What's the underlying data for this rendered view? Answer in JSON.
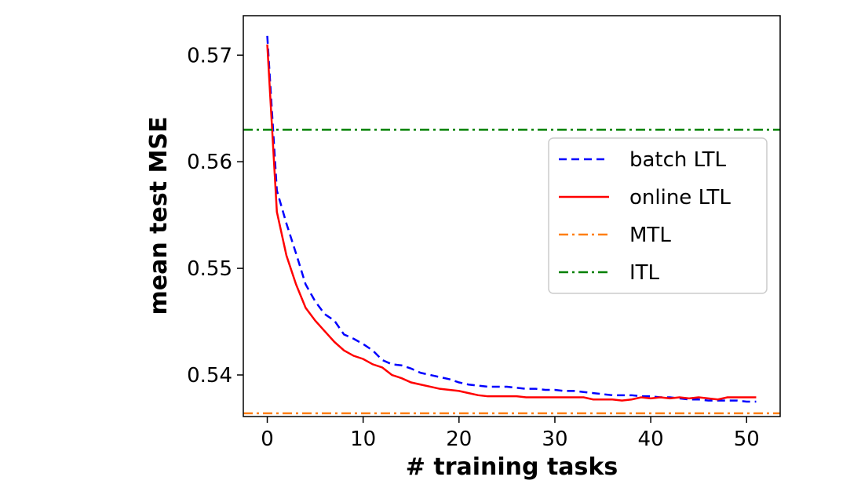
{
  "chart_data": {
    "type": "line",
    "xlabel": "# training tasks",
    "ylabel": "mean test MSE",
    "xlim": [
      -2.5,
      53.5
    ],
    "ylim": [
      0.5361,
      0.5737
    ],
    "xticks": [
      0,
      10,
      20,
      30,
      40,
      50
    ],
    "yticks": [
      0.54,
      0.55,
      0.56,
      0.57
    ],
    "xtick_labels": [
      "0",
      "10",
      "20",
      "30",
      "40",
      "50"
    ],
    "ytick_labels": [
      "0.54",
      "0.55",
      "0.56",
      "0.57"
    ],
    "grid": false,
    "legend_position": "upper-right",
    "series": [
      {
        "name": "batch LTL",
        "color": "#0000ff",
        "style": "dashed",
        "x": [
          0,
          1,
          2,
          3,
          4,
          5,
          6,
          7,
          8,
          9,
          10,
          11,
          12,
          13,
          14,
          15,
          16,
          17,
          18,
          19,
          20,
          21,
          22,
          23,
          24,
          25,
          26,
          27,
          28,
          29,
          30,
          31,
          32,
          33,
          34,
          35,
          36,
          37,
          38,
          39,
          40,
          41,
          42,
          43,
          44,
          45,
          46,
          47,
          48,
          49,
          50,
          51
        ],
        "y": [
          0.5718,
          0.5573,
          0.5542,
          0.5514,
          0.5485,
          0.5469,
          0.5457,
          0.5451,
          0.5438,
          0.5434,
          0.5429,
          0.5423,
          0.5414,
          0.541,
          0.5409,
          0.5406,
          0.5402,
          0.54,
          0.5398,
          0.5396,
          0.5393,
          0.5391,
          0.539,
          0.5389,
          0.5389,
          0.5389,
          0.5388,
          0.5387,
          0.5387,
          0.5386,
          0.5386,
          0.5385,
          0.5385,
          0.5384,
          0.5383,
          0.5382,
          0.5381,
          0.5381,
          0.5381,
          0.538,
          0.538,
          0.5379,
          0.5379,
          0.5378,
          0.5377,
          0.5377,
          0.5376,
          0.5376,
          0.5376,
          0.5376,
          0.5375,
          0.5375
        ]
      },
      {
        "name": "online LTL",
        "color": "#ff0000",
        "style": "solid",
        "x": [
          0,
          1,
          2,
          3,
          4,
          5,
          6,
          7,
          8,
          9,
          10,
          11,
          12,
          13,
          14,
          15,
          16,
          17,
          18,
          19,
          20,
          21,
          22,
          23,
          24,
          25,
          26,
          27,
          28,
          29,
          30,
          31,
          32,
          33,
          34,
          35,
          36,
          37,
          38,
          39,
          40,
          41,
          42,
          43,
          44,
          45,
          46,
          47,
          48,
          49,
          50,
          51
        ],
        "y": [
          0.571,
          0.5553,
          0.5512,
          0.5485,
          0.5463,
          0.5451,
          0.5441,
          0.5431,
          0.5423,
          0.5418,
          0.5415,
          0.541,
          0.5407,
          0.54,
          0.5397,
          0.5393,
          0.5391,
          0.5389,
          0.5387,
          0.5386,
          0.5385,
          0.5383,
          0.5381,
          0.538,
          0.538,
          0.538,
          0.538,
          0.5379,
          0.5379,
          0.5379,
          0.5379,
          0.5379,
          0.5379,
          0.5379,
          0.5377,
          0.5377,
          0.5377,
          0.5376,
          0.5377,
          0.5379,
          0.5378,
          0.5379,
          0.5378,
          0.5379,
          0.5378,
          0.5379,
          0.5378,
          0.5377,
          0.5379,
          0.5379,
          0.5379,
          0.5379
        ]
      },
      {
        "name": "MTL",
        "color": "#ff7f0e",
        "style": "dashdot",
        "y_const": 0.5364
      },
      {
        "name": "ITL",
        "color": "#008000",
        "style": "dashdot",
        "y_const": 0.563
      }
    ]
  }
}
